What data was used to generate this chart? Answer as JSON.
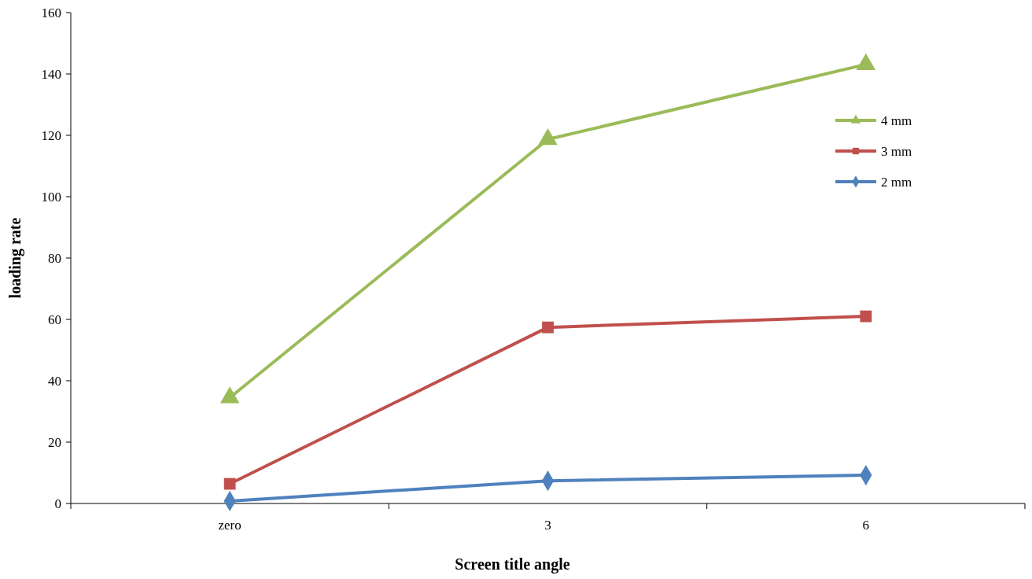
{
  "chart_data": {
    "type": "line",
    "xlabel": "Screen title angle",
    "ylabel": "loading rate",
    "categories": [
      "zero",
      "3",
      "6"
    ],
    "series": [
      {
        "name": "4 mm",
        "color": "#9bbb59",
        "marker": "triangle",
        "values": [
          34.5,
          118.7,
          143.1
        ]
      },
      {
        "name": "3 mm",
        "color": "#c0504d",
        "marker": "square",
        "values": [
          6.4,
          57.4,
          61.0
        ]
      },
      {
        "name": "2 mm",
        "color": "#4f81bd",
        "marker": "diamond",
        "values": [
          0.8,
          7.4,
          9.2
        ]
      }
    ],
    "ylim": [
      0,
      160
    ],
    "yticks": [
      0,
      20,
      40,
      60,
      80,
      100,
      120,
      140,
      160
    ],
    "grid": false,
    "legend": "top right"
  }
}
